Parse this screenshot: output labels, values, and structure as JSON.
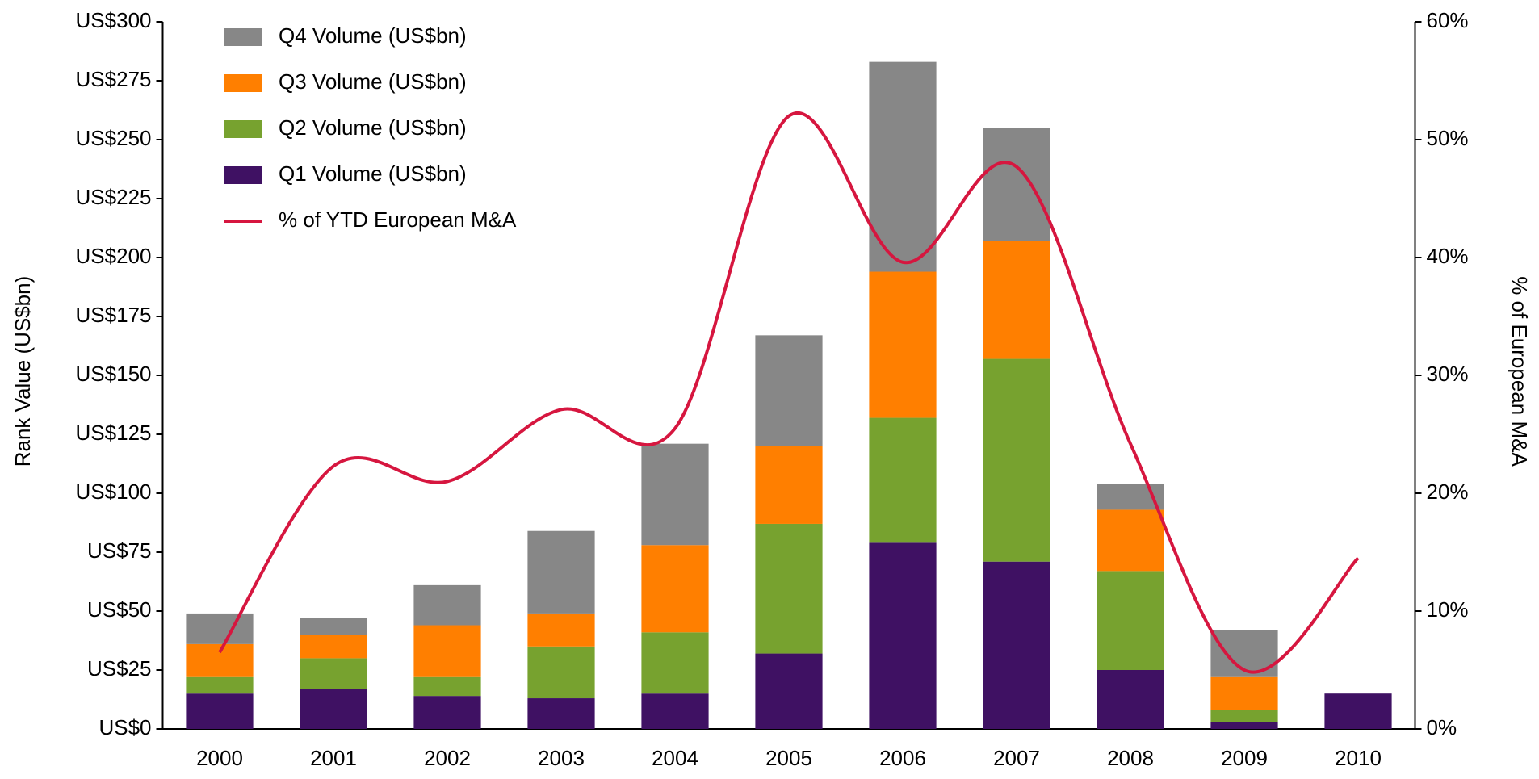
{
  "chart_data": {
    "type": "stacked-bar-line",
    "y_label": "Rank Value (US$bn)",
    "y2_label": "% of European M&A",
    "categories": [
      "2000",
      "2001",
      "2002",
      "2003",
      "2004",
      "2005",
      "2006",
      "2007",
      "2008",
      "2009",
      "2010"
    ],
    "series": [
      {
        "name": "Q1 Volume (US$bn)",
        "color": "#3f1163",
        "values": [
          15,
          17,
          14,
          13,
          15,
          32,
          79,
          71,
          25,
          3,
          15
        ]
      },
      {
        "name": "Q2 Volume (US$bn)",
        "color": "#77a22f",
        "values": [
          7,
          13,
          8,
          22,
          26,
          55,
          53,
          86,
          42,
          5,
          null
        ]
      },
      {
        "name": "Q3 Volume (US$bn)",
        "color": "#ff7f00",
        "values": [
          14,
          10,
          22,
          14,
          37,
          33,
          62,
          50,
          26,
          14,
          null
        ]
      },
      {
        "name": "Q4 Volume (US$bn)",
        "color": "#878787",
        "values": [
          13,
          7,
          17,
          35,
          43,
          47,
          89,
          48,
          11,
          20,
          null
        ]
      },
      {
        "name": "% of YTD European M&A",
        "color": "#d6163f",
        "type": "line",
        "axis": "y2",
        "values": [
          6.5,
          22.3,
          21,
          27.1,
          25.5,
          52,
          39.6,
          47.7,
          24.2,
          5,
          14.5
        ]
      }
    ],
    "ylim": [
      0,
      300
    ],
    "yticks": [
      {
        "value": 0,
        "label": "US$0"
      },
      {
        "value": 25,
        "label": "US$25"
      },
      {
        "value": 50,
        "label": "US$50"
      },
      {
        "value": 75,
        "label": "US$75"
      },
      {
        "value": 100,
        "label": "US$100"
      },
      {
        "value": 125,
        "label": "US$125"
      },
      {
        "value": 150,
        "label": "US$150"
      },
      {
        "value": 175,
        "label": "US$175"
      },
      {
        "value": 200,
        "label": "US$200"
      },
      {
        "value": 225,
        "label": "US$225"
      },
      {
        "value": 250,
        "label": "US$250"
      },
      {
        "value": 275,
        "label": "US$275"
      },
      {
        "value": 300,
        "label": "US$300"
      }
    ],
    "y2lim": [
      0,
      60
    ],
    "y2ticks": [
      {
        "value": 0,
        "label": "0%"
      },
      {
        "value": 10,
        "label": "10%"
      },
      {
        "value": 20,
        "label": "20%"
      },
      {
        "value": 30,
        "label": "30%"
      },
      {
        "value": 40,
        "label": "40%"
      },
      {
        "value": 50,
        "label": "50%"
      },
      {
        "value": 60,
        "label": "60%"
      }
    ],
    "legend": "top-left"
  }
}
